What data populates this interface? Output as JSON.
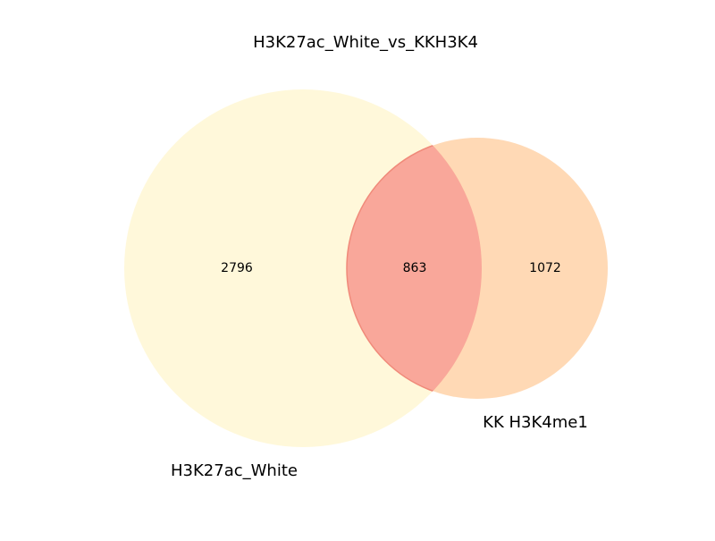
{
  "title": "H3K27ac_White_vs_KKH3K4",
  "sets": [
    {
      "name": "H3K27ac_White",
      "only_count": "2796",
      "color": "#FFF3C2",
      "opacity": 0.6
    },
    {
      "name": "KK H3K4me1",
      "only_count": "1072",
      "color": "#FFB36B",
      "opacity": 0.5
    }
  ],
  "intersection": {
    "count": "863",
    "color": "#F9A79A",
    "edge": "#F08A7A"
  },
  "chart_data": {
    "type": "venn2",
    "title": "H3K27ac_White_vs_KKH3K4",
    "sets": [
      "H3K27ac_White",
      "KK H3K4me1"
    ],
    "regions": {
      "10": 2796,
      "01": 1072,
      "11": 863
    }
  }
}
